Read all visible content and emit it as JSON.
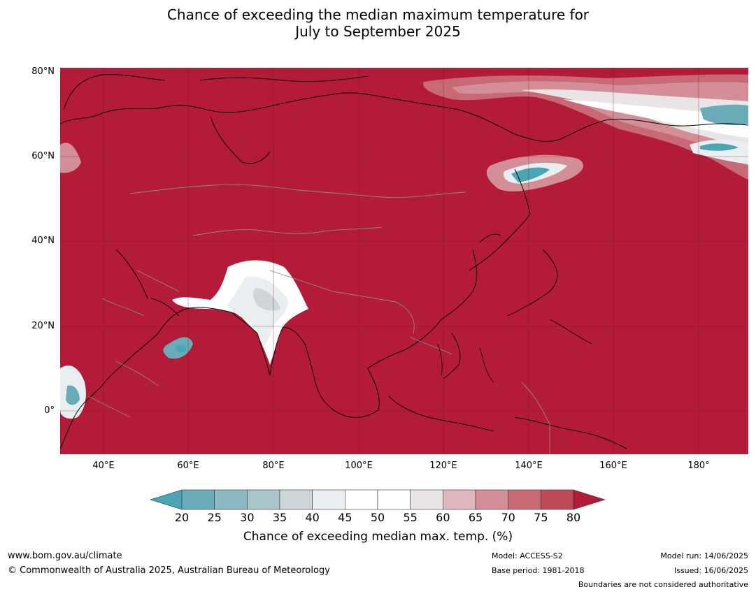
{
  "title_line1": "Chance of exceeding the median maximum temperature for",
  "title_line2": "July to September 2025",
  "map": {
    "base_color": "#b31b39",
    "lat_labels": [
      "80°N",
      "60°N",
      "40°N",
      "20°N",
      "0°"
    ],
    "lon_labels": [
      "40°E",
      "60°E",
      "80°E",
      "100°E",
      "120°E",
      "140°E",
      "160°E",
      "180°"
    ]
  },
  "colorbar": {
    "ticks": [
      "20",
      "25",
      "30",
      "35",
      "40",
      "45",
      "50",
      "55",
      "60",
      "65",
      "70",
      "75",
      "80"
    ],
    "colors": [
      "#4aa5b5",
      "#6aabb9",
      "#8ab8c3",
      "#aac6cb",
      "#cdd7da",
      "#e9eff1",
      "#ffffff",
      "#ffffff",
      "#e9e5e6",
      "#dfb7bd",
      "#d48e98",
      "#c76a76",
      "#bf4a57",
      "#b31b39"
    ],
    "label": "Chance of exceeding median max. temp. (%)"
  },
  "footer": {
    "website": "www.bom.gov.au/climate",
    "copyright": "© Commonwealth of Australia 2025, Australian Bureau of Meteorology",
    "model": "Model: ACCESS-S2",
    "base_period": "Base period: 1981-2018",
    "model_run": "Model run: 14/06/2025",
    "issued": "Issued: 16/06/2025",
    "disclaimer": "Boundaries are not considered authoritative"
  }
}
